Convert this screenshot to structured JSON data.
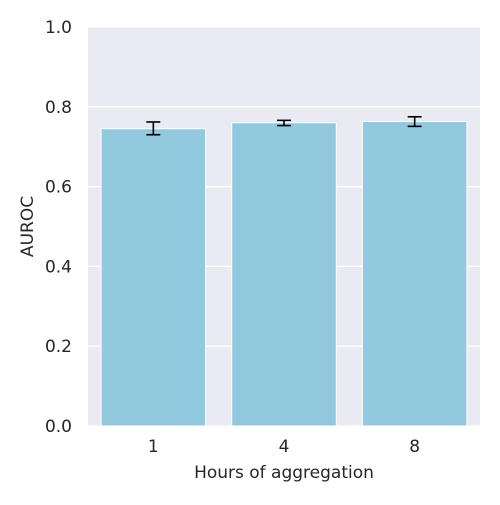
{
  "chart_data": {
    "type": "bar",
    "title": "",
    "xlabel": "Hours of aggregation",
    "ylabel": "AUROC",
    "categories": [
      "1",
      "4",
      "8"
    ],
    "values": [
      0.745,
      0.76,
      0.763
    ],
    "error": [
      {
        "low": 0.73,
        "high": 0.762
      },
      {
        "low": 0.753,
        "high": 0.766
      },
      {
        "low": 0.751,
        "high": 0.775
      }
    ],
    "ylim": [
      0,
      1.0
    ],
    "yticks": [
      "0.0",
      "0.2",
      "0.4",
      "0.6",
      "0.8",
      "1.0"
    ],
    "grid": true,
    "colors": {
      "bar": "#92c9de",
      "plot_bg": "#eaeaf2",
      "grid": "#ffffff",
      "error": "#000000"
    }
  }
}
